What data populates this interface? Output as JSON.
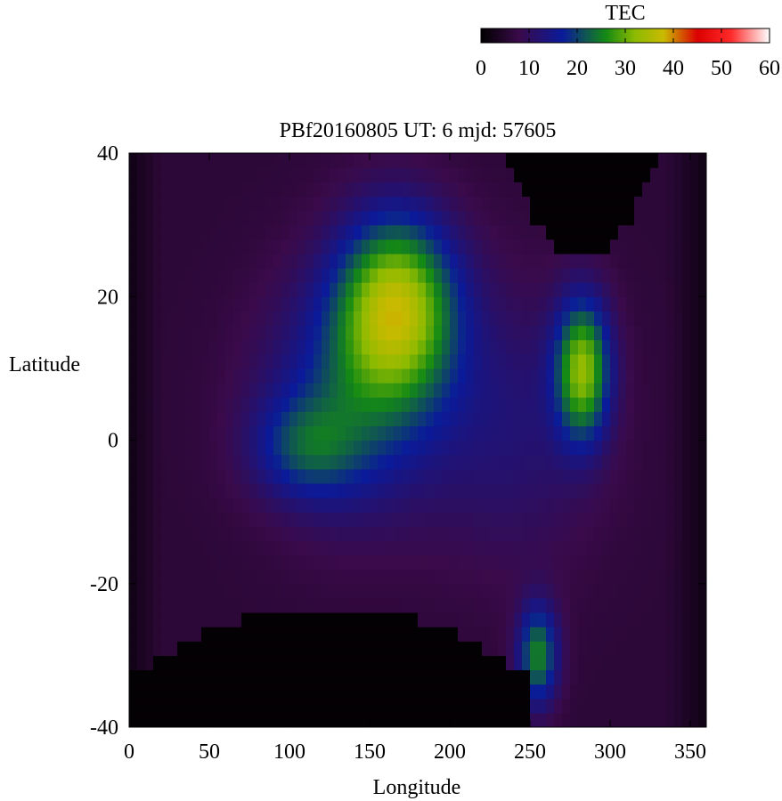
{
  "chart_data": {
    "type": "heatmap",
    "title": "PBf20160805  UT: 6  mjd: 57605",
    "xlabel": "Longitude",
    "ylabel": "Latitude",
    "xlim": [
      0,
      360
    ],
    "ylim": [
      -40,
      40
    ],
    "x_ticks": [
      0,
      50,
      100,
      150,
      200,
      250,
      300,
      350
    ],
    "y_ticks": [
      -40,
      -20,
      0,
      20,
      40
    ],
    "colorbar": {
      "label": "TEC",
      "range": [
        0,
        60
      ],
      "ticks": [
        0,
        10,
        20,
        30,
        40,
        50,
        60
      ],
      "stops": [
        {
          "v": 0,
          "color": "#000000"
        },
        {
          "v": 8,
          "color": "#3a0a4a"
        },
        {
          "v": 17,
          "color": "#0a1a9a"
        },
        {
          "v": 26,
          "color": "#148a14"
        },
        {
          "v": 32,
          "color": "#8cba00"
        },
        {
          "v": 38,
          "color": "#caba00"
        },
        {
          "v": 45,
          "color": "#dc0000"
        },
        {
          "v": 52,
          "color": "#ff2a2a"
        },
        {
          "v": 60,
          "color": "#ffffff"
        }
      ]
    },
    "grid_resolution": {
      "lon_step": 5,
      "lat_step": 2
    },
    "field": {
      "background": 6,
      "blobs": [
        {
          "lon": 167,
          "lat": 19,
          "slon": 26,
          "slat": 9,
          "amp": 26
        },
        {
          "lon": 140,
          "lat": 6,
          "slon": 40,
          "slat": 12,
          "amp": 12
        },
        {
          "lon": 110,
          "lat": -1,
          "slon": 24,
          "slat": 5,
          "amp": 10
        },
        {
          "lon": 283,
          "lat": 10,
          "slon": 12,
          "slat": 7,
          "amp": 24
        },
        {
          "lon": 255,
          "lat": -30,
          "slon": 9,
          "slat": 5,
          "amp": 19
        },
        {
          "lon": 240,
          "lat": 2,
          "slon": 40,
          "slat": 14,
          "amp": 6
        }
      ],
      "dark_regions": [
        {
          "name": "north",
          "lon": [
            235,
            330
          ],
          "edge_lat_center": 25,
          "edge_lat_side": 40
        },
        {
          "name": "south",
          "lon": [
            0,
            250
          ],
          "edge_lat_center": -23,
          "edge_lat_side": -33
        }
      ]
    }
  }
}
